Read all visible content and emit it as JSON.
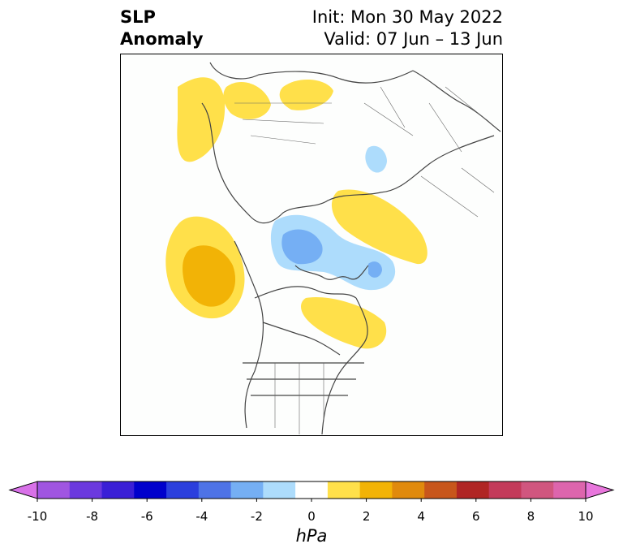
{
  "title": {
    "left_line1": "SLP",
    "left_line2": "Anomaly",
    "right_line1": "Init: Mon 30 May 2022",
    "right_line2": "Valid: 07 Jun – 13 Jun"
  },
  "colorbar": {
    "units": "hPa",
    "tick_labels": [
      "-10",
      "-8",
      "-6",
      "-4",
      "-2",
      "0",
      "2",
      "4",
      "6",
      "8",
      "10"
    ],
    "colors": [
      "#d871e8",
      "#a055e1",
      "#6b39de",
      "#3a1fd6",
      "#0000cc",
      "#2b3fdd",
      "#4e73e6",
      "#75aff4",
      "#addcfc",
      "#ffffff",
      "#ffe04a",
      "#f2b306",
      "#e08a0c",
      "#c8561b",
      "#b02524",
      "#c33a5a",
      "#d0567f",
      "#dd65ad",
      "#e876dc"
    ]
  },
  "map": {
    "projection": "north polar stereographic",
    "anomaly_colors": {
      "positive_light": "#ffe04a",
      "positive_strong": "#f2b306",
      "negative_light": "#addcfc",
      "negative_strong": "#75aff4"
    }
  }
}
